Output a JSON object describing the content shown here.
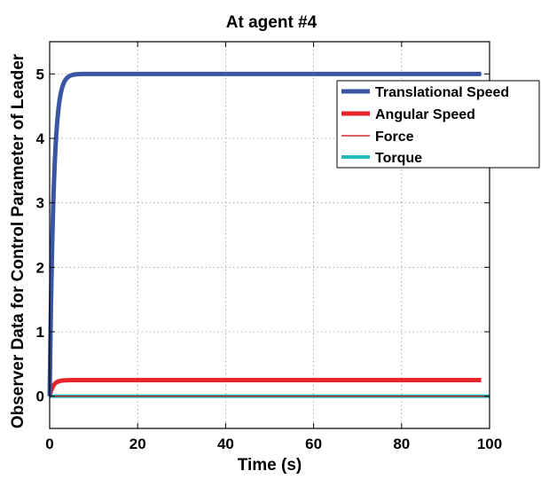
{
  "chart_data": {
    "type": "line",
    "title": "At agent #4",
    "xlabel": "Time (s)",
    "ylabel": "Observer Data for Control Parameter of Leader",
    "xlim": [
      0,
      100
    ],
    "ylim": [
      -0.5,
      5.5
    ],
    "xticks": [
      0,
      20,
      40,
      60,
      80,
      100
    ],
    "yticks": [
      0,
      1,
      2,
      3,
      4,
      5
    ],
    "x_tick_labels": [
      "0",
      "20",
      "40",
      "60",
      "80",
      "100"
    ],
    "y_tick_labels": [
      "0",
      "1",
      "2",
      "3",
      "4",
      "5"
    ],
    "grid": true,
    "legend_position": "top-right",
    "series": [
      {
        "name": "Translational Speed",
        "color": "#3a55a4",
        "final_value": 5.0,
        "time_constant": 0.9,
        "x": [
          0,
          0.5,
          1,
          1.5,
          2,
          2.5,
          3,
          4,
          5,
          6,
          8,
          100
        ],
        "y": [
          0,
          2.1,
          3.4,
          4.2,
          4.6,
          4.8,
          4.9,
          4.97,
          4.99,
          5.0,
          5.0,
          5.0
        ]
      },
      {
        "name": "Angular Speed",
        "color": "#e8262a",
        "final_value": 0.25,
        "time_constant": 0.8,
        "x": [
          0,
          0.5,
          1,
          1.5,
          2,
          3,
          4,
          100
        ],
        "y": [
          0,
          0.12,
          0.18,
          0.22,
          0.24,
          0.25,
          0.25,
          0.25
        ]
      },
      {
        "name": "Force",
        "color": "#cc0000",
        "final_value": 0.0,
        "x": [
          0,
          100
        ],
        "y": [
          0,
          0
        ]
      },
      {
        "name": "Torque",
        "color": "#22bbbb",
        "final_value": 0.0,
        "x": [
          0,
          100
        ],
        "y": [
          0,
          0
        ]
      }
    ]
  }
}
